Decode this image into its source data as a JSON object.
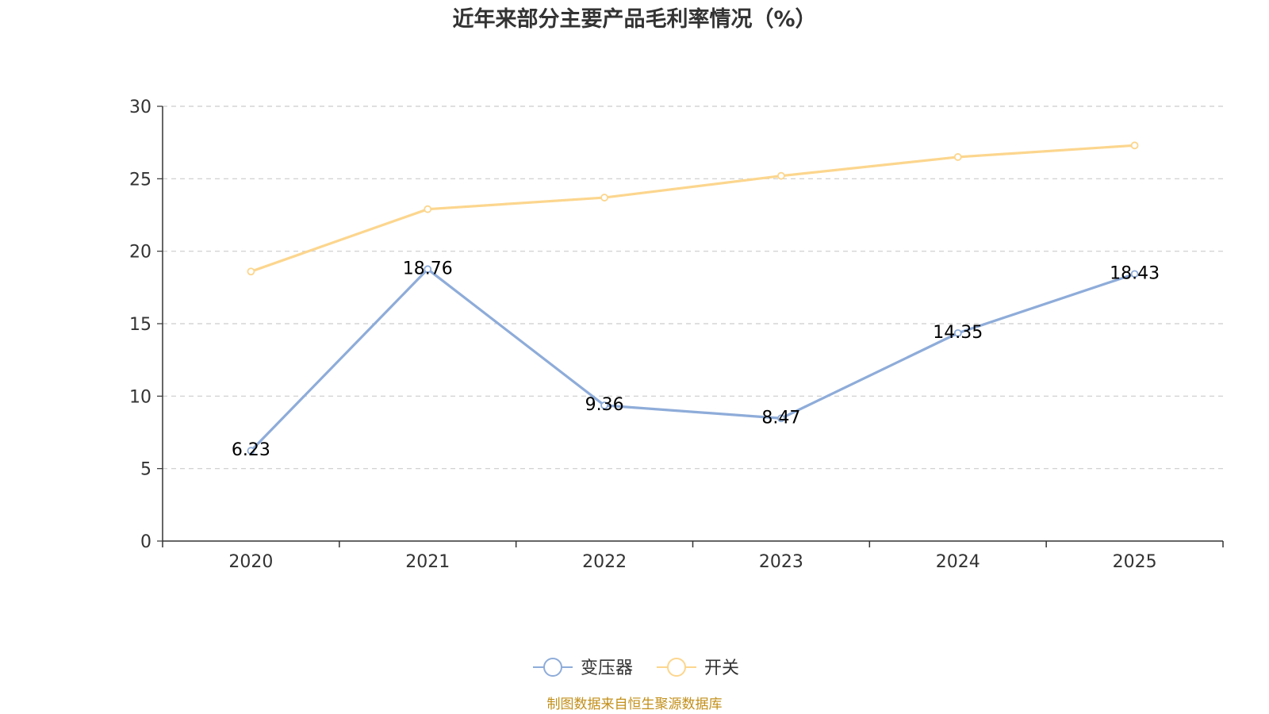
{
  "chart_data": {
    "type": "line",
    "title": "近年来部分主要产品毛利率情况（%）",
    "categories": [
      "2020",
      "2021",
      "2022",
      "2023",
      "2024",
      "2025"
    ],
    "series": [
      {
        "name": "变压器",
        "values": [
          6.23,
          18.76,
          9.36,
          8.47,
          14.35,
          18.43
        ],
        "color": "#8eacd9",
        "show_labels": true
      },
      {
        "name": "开关",
        "values": [
          18.6,
          22.9,
          23.7,
          25.2,
          26.5,
          27.3
        ],
        "color": "#fcd68e",
        "show_labels": false
      }
    ],
    "ylim": [
      0,
      30
    ],
    "yticks": [
      0,
      5,
      10,
      15,
      20,
      25,
      30
    ],
    "xlabel": "",
    "ylabel": "",
    "grid": true,
    "legend": "bottom-center"
  },
  "source": "制图数据来自恒生聚源数据库",
  "colors": {
    "axis": "#333333",
    "grid": "#cccccc",
    "source": "#c28f1a"
  }
}
